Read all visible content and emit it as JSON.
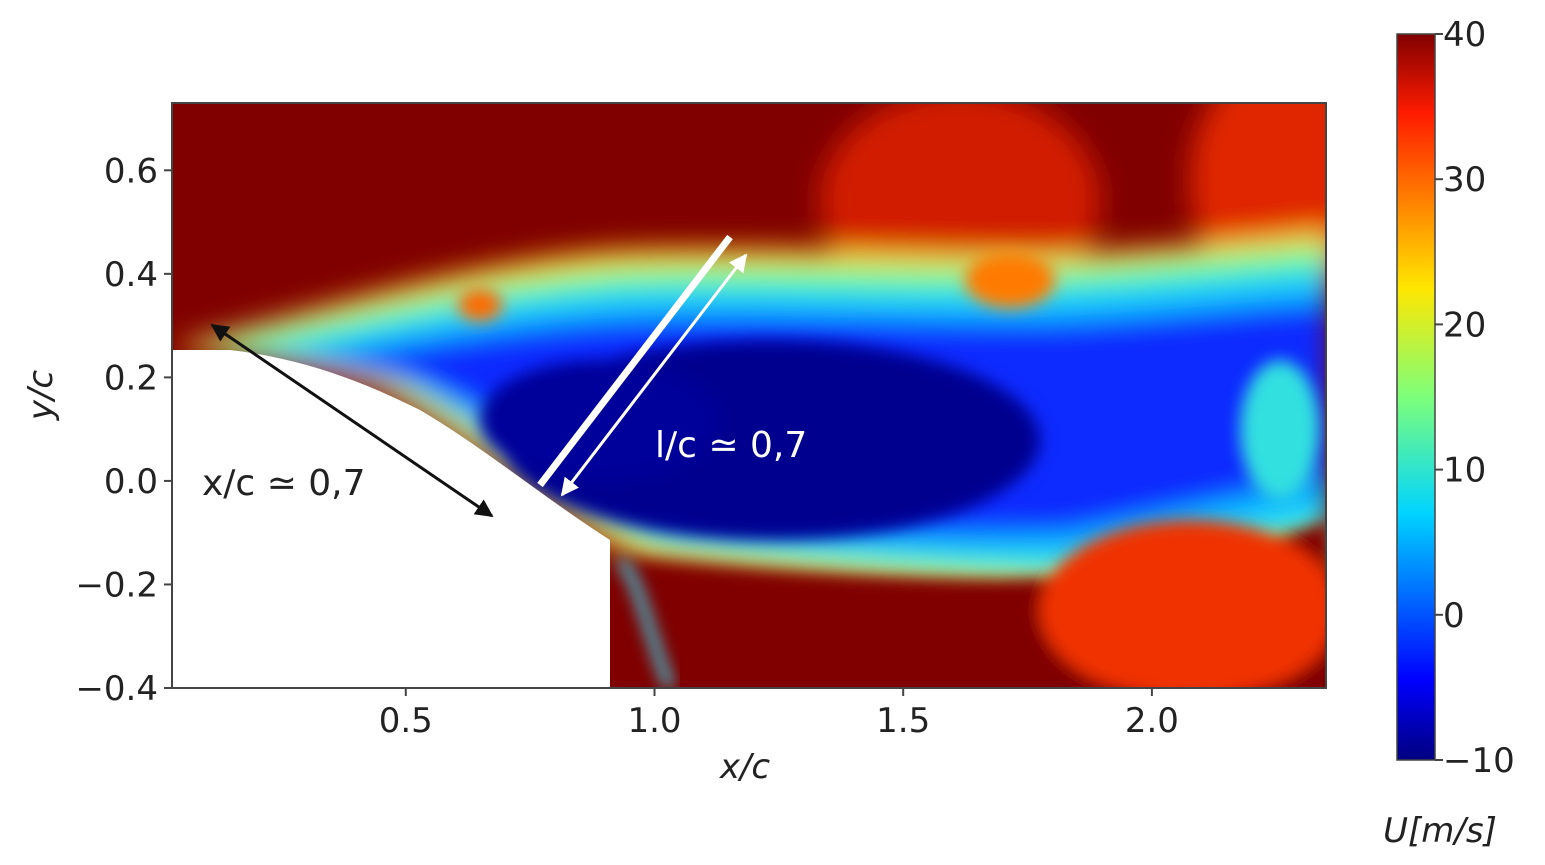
{
  "chart_data": {
    "type": "heatmap",
    "xlabel": "x/c",
    "ylabel": "y/c",
    "xlim": [
      0.03,
      2.35
    ],
    "ylim": [
      -0.4,
      0.73
    ],
    "xticks": [
      "0.5",
      "1.0",
      "1.5",
      "2.0"
    ],
    "yticks": [
      "0.6",
      "0.4",
      "0.2",
      "0.0",
      "−0.2",
      "−0.4"
    ],
    "colorbar": {
      "label": "U[m/s]",
      "range": [
        -10,
        40
      ],
      "ticks": [
        "40",
        "30",
        "20",
        "10",
        "0",
        "−10"
      ],
      "colormap": "jet"
    },
    "annotations": [
      {
        "text": "x/c ≃ 0,7",
        "color": "#222222"
      },
      {
        "text": "l/c ≃ 0,7",
        "color": "#ffffff"
      }
    ]
  }
}
